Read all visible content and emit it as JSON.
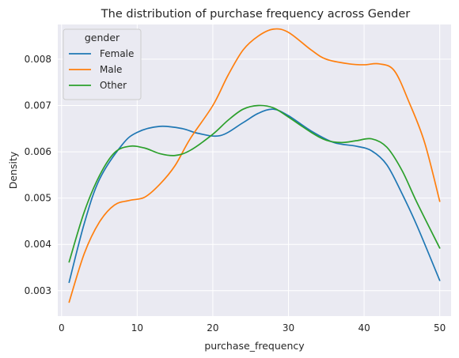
{
  "chart_data": {
    "type": "line",
    "title": "The distribution of purchase frequency across Gender",
    "xlabel": "purchase_frequency",
    "ylabel": "Density",
    "xlim": [
      -0.5,
      51.5
    ],
    "ylim": [
      0.00245,
      0.00875
    ],
    "xticks": [
      0,
      10,
      20,
      30,
      40,
      50
    ],
    "yticks": [
      0.003,
      0.004,
      0.005,
      0.006,
      0.007,
      0.008
    ],
    "grid": true,
    "legend": {
      "title": "gender",
      "placement": "top-left"
    },
    "series": [
      {
        "name": "Female",
        "color": "#1f77b4",
        "x": [
          1,
          3,
          5,
          8,
          10,
          13,
          16,
          18,
          21,
          24,
          26,
          28,
          30,
          33,
          36,
          39,
          41,
          43,
          45,
          47,
          50
        ],
        "y": [
          0.00318,
          0.00445,
          0.0054,
          0.00615,
          0.00642,
          0.00655,
          0.0065,
          0.0064,
          0.00635,
          0.00663,
          0.00683,
          0.00692,
          0.00678,
          0.00645,
          0.0062,
          0.00612,
          0.00602,
          0.00572,
          0.0051,
          0.0044,
          0.00322
        ]
      },
      {
        "name": "Male",
        "color": "#ff7f0e",
        "x": [
          1,
          3,
          5,
          7,
          9,
          11,
          13,
          15,
          17,
          20,
          22,
          24,
          26,
          28,
          30,
          33,
          35,
          38,
          40,
          42,
          44,
          46,
          48,
          50
        ],
        "y": [
          0.00275,
          0.0038,
          0.00448,
          0.00485,
          0.00495,
          0.00502,
          0.0053,
          0.0057,
          0.00628,
          0.007,
          0.00765,
          0.0082,
          0.0085,
          0.00865,
          0.00858,
          0.0082,
          0.008,
          0.0079,
          0.00788,
          0.0079,
          0.00775,
          0.00705,
          0.0062,
          0.00493
        ]
      },
      {
        "name": "Other",
        "color": "#2ca02c",
        "x": [
          1,
          3,
          5,
          7,
          9,
          11,
          13,
          15,
          17,
          20,
          22,
          24,
          26,
          28,
          30,
          33,
          35,
          37,
          39,
          41,
          43,
          45,
          47,
          50
        ],
        "y": [
          0.00362,
          0.0047,
          0.00548,
          0.00598,
          0.00612,
          0.00608,
          0.00596,
          0.00592,
          0.00603,
          0.00638,
          0.00668,
          0.00692,
          0.007,
          0.00695,
          0.00675,
          0.00642,
          0.00625,
          0.0062,
          0.00624,
          0.00628,
          0.0061,
          0.0056,
          0.0049,
          0.00392
        ]
      }
    ]
  }
}
